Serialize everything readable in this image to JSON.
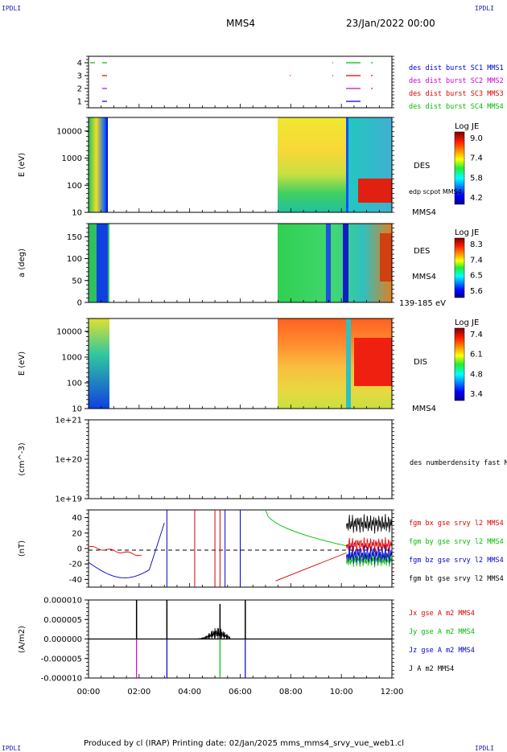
{
  "header": {
    "corner_label": "IPDLI",
    "spacecraft": "MMS4",
    "date_time": "23/Jan/2022 00:00"
  },
  "footer": {
    "text": "Produced by cl (IRAP)   Printing date: 02/Jan/2025   mms_mms4_srvy_vue_web1.cl"
  },
  "chart_data": [
    {
      "type": "timeline",
      "ylim": [
        0.5,
        4.5
      ],
      "yticks": [
        "1",
        "2",
        "3",
        "4"
      ],
      "legend": [
        {
          "text": "des dist burst SC1 MMS1",
          "color": "#0000cc"
        },
        {
          "text": "des dist burst SC2 MMS2",
          "color": "#cc00cc"
        },
        {
          "text": "des dist burst SC3 MMS3",
          "color": "#dd0000"
        },
        {
          "text": "des dist burst SC4 MMS4",
          "color": "#00bb00"
        }
      ]
    },
    {
      "type": "heatmap",
      "ylabel": "E (eV)",
      "yscale": "log",
      "yticks": [
        "10",
        "100",
        "1000",
        "10000"
      ],
      "labels": [
        "DES",
        "edp scpot MMS4",
        "MMS4"
      ],
      "colorbar": {
        "title": "Log JE",
        "ticks": [
          "9.0",
          "7.4",
          "5.8",
          "4.2"
        ]
      }
    },
    {
      "type": "heatmap",
      "ylabel": "a (deg)",
      "yticks": [
        "0",
        "50",
        "100",
        "150"
      ],
      "ylim": [
        0,
        180
      ],
      "labels": [
        "DES",
        "MMS4",
        "139-185 eV"
      ],
      "colorbar": {
        "title": "Log JE",
        "ticks": [
          "8.3",
          "7.4",
          "6.5",
          "5.6"
        ]
      }
    },
    {
      "type": "heatmap",
      "ylabel": "E (eV)",
      "yscale": "log",
      "yticks": [
        "10",
        "100",
        "1000",
        "10000"
      ],
      "labels": [
        "DIS",
        "MMS4"
      ],
      "colorbar": {
        "title": "Log JE",
        "ticks": [
          "7.4",
          "6.1",
          "4.8",
          "3.4"
        ]
      }
    },
    {
      "type": "line",
      "ylabel": "(cm^-3)",
      "yscale": "log",
      "yticks": [
        "1e+19",
        "1e+20",
        "1e+21"
      ],
      "legend": [
        {
          "text": "des numberdensity fast M",
          "color": "#000000"
        }
      ]
    },
    {
      "type": "line",
      "ylabel": "(nT)",
      "ylim": [
        -50,
        50
      ],
      "yticks": [
        "-40",
        "-20",
        "0",
        "20",
        "40"
      ],
      "legend": [
        {
          "text": "fgm bx gse srvy l2 MMS4",
          "color": "#dd0000"
        },
        {
          "text": "fgm by gse srvy l2 MMS4",
          "color": "#00bb00"
        },
        {
          "text": "fgm bz gse srvy l2 MMS4",
          "color": "#0000cc"
        },
        {
          "text": "fgm bt gse srvy l2 MMS4",
          "color": "#000000"
        }
      ]
    },
    {
      "type": "line",
      "ylabel": "(A/m2)",
      "ylim": [
        -1e-05,
        1e-05
      ],
      "yticks": [
        "-0.000010",
        "-0.000005",
        "0.000000",
        "0.000005",
        "0.000010"
      ],
      "legend": [
        {
          "text": "Jx gse A m2 MMS4",
          "color": "#dd0000"
        },
        {
          "text": "Jy gse A m2 MMS4",
          "color": "#00bb00"
        },
        {
          "text": "Jz gse A m2 MMS4",
          "color": "#0000cc"
        },
        {
          "text": "J A m2 MMS4",
          "color": "#000000"
        }
      ]
    }
  ],
  "time_axis": {
    "labels": [
      "00:00",
      "02:00",
      "04:00",
      "06:00",
      "08:00",
      "10:00",
      "12:00"
    ]
  }
}
